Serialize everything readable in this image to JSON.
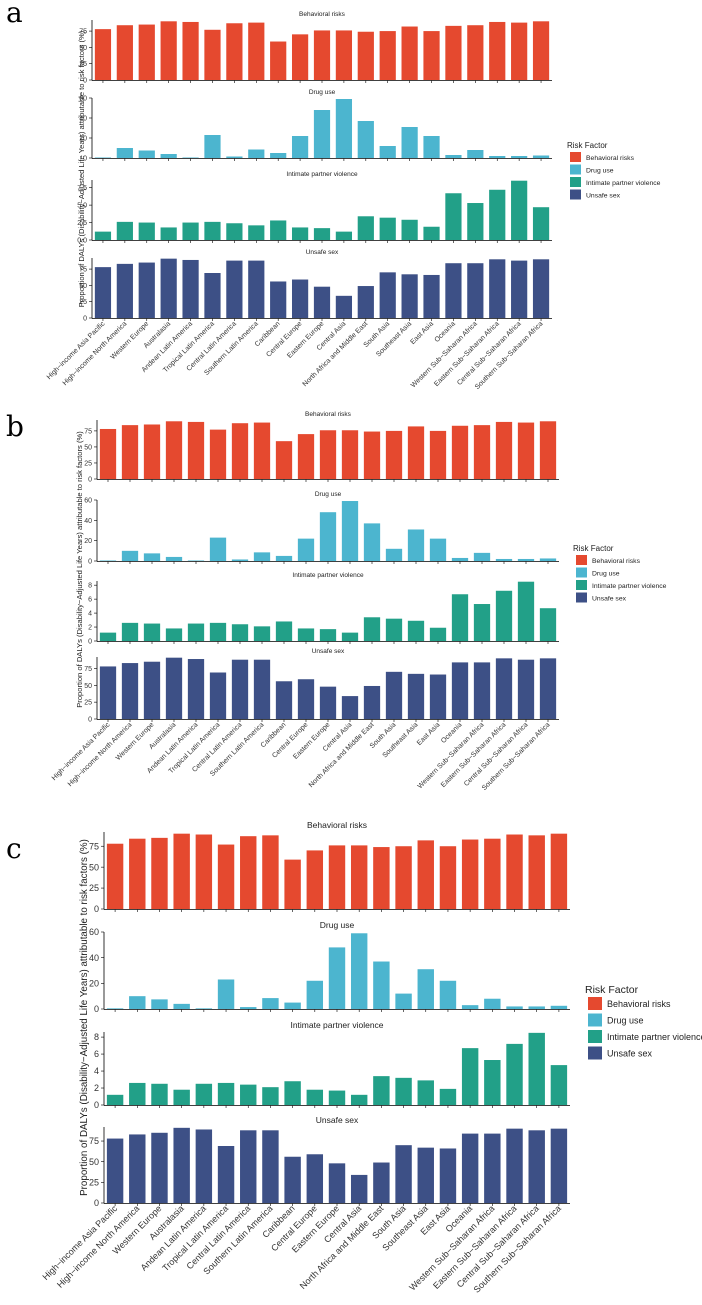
{
  "panel_letters": [
    "a",
    "b",
    "c"
  ],
  "chart_data": {
    "type": "bar",
    "title": "",
    "ylabel": "Proportion of DALYs (Disability−Adjusted Life Years) attributable to risk factors (%)",
    "xlabel": "",
    "legend_title": "Risk Factor",
    "legend_position": "right",
    "categories": [
      "High−income Asia Pacific",
      "High−income North America",
      "Western Europe",
      "Australasia",
      "Andean Latin America",
      "Tropical Latin America",
      "Central Latin America",
      "Southern Latin America",
      "Caribbean",
      "Central Europe",
      "Eastern Europe",
      "Central Asia",
      "North Africa and Middle East",
      "South Asia",
      "Southeast Asia",
      "East Asia",
      "Oceania",
      "Western Sub−Saharan Africa",
      "Eastern Sub−Saharan Africa",
      "Central Sub−Saharan Africa",
      "Southern Sub−Saharan Africa"
    ],
    "series": [
      {
        "name": "Behavioral risks",
        "color": "#E5492F",
        "ylim": [
          0,
          92
        ],
        "ticks": [
          0,
          25,
          50,
          75
        ],
        "values": [
          78,
          84,
          85,
          90,
          89,
          77,
          87,
          88,
          59,
          70,
          76,
          76,
          74,
          75,
          82,
          75,
          83,
          84,
          89,
          88,
          90
        ]
      },
      {
        "name": "Drug use",
        "color": "#4CB5CF",
        "ylim": [
          0,
          60
        ],
        "ticks": [
          0,
          20,
          40,
          60
        ],
        "values": [
          0.5,
          10,
          7.5,
          4,
          0.5,
          23,
          1.5,
          8.5,
          5,
          22,
          48,
          59,
          37,
          12,
          31,
          22,
          3,
          8,
          2,
          2,
          2.5
        ]
      },
      {
        "name": "Intimate partner violence",
        "color": "#22A088",
        "ylim": [
          0,
          8.6
        ],
        "ticks": [
          0,
          2,
          4,
          6,
          8
        ],
        "values": [
          1.2,
          2.6,
          2.5,
          1.8,
          2.5,
          2.6,
          2.4,
          2.1,
          2.8,
          1.8,
          1.7,
          1.2,
          3.4,
          3.2,
          2.9,
          1.9,
          6.7,
          5.3,
          7.2,
          8.5,
          4.7
        ]
      },
      {
        "name": "Unsafe sex",
        "color": "#3D5086",
        "ylim": [
          0,
          92
        ],
        "ticks": [
          0,
          25,
          50,
          75
        ],
        "values": [
          78,
          83,
          85,
          91,
          89,
          69,
          88,
          88,
          56,
          59,
          48,
          34,
          49,
          70,
          67,
          66,
          84,
          84,
          90,
          88,
          90
        ]
      }
    ],
    "panels": [
      {
        "label": "a",
        "subplots": [
          {
            "title": "Behavioral risks",
            "ylim": [
              0,
              92
            ],
            "ticks": [
              "0",
              "25",
              "50",
              "75"
            ],
            "tick_values": [
              0,
              25,
              50,
              75
            ]
          },
          {
            "title": "Drug use",
            "ylim": [
              0,
              60
            ],
            "ticks": [
              "0",
              "20",
              "40",
              "60"
            ],
            "tick_values": [
              0,
              20,
              40,
              60
            ]
          },
          {
            "title": "Intimate partner violence",
            "ylim": [
              0,
              8.6
            ],
            "ticks": [
              "0.0",
              "2.5",
              "5.0",
              "7.5"
            ],
            "tick_values": [
              0,
              2.5,
              5,
              7.5
            ]
          },
          {
            "title": "Unsafe sex",
            "ylim": [
              0,
              92
            ],
            "ticks": [
              "0",
              "25",
              "50",
              "75"
            ],
            "tick_values": [
              0,
              25,
              50,
              75
            ]
          }
        ]
      },
      {
        "label": "b",
        "subplots": [
          {
            "title": "Behavioral risks",
            "ylim": [
              0,
              92
            ],
            "ticks": [
              "0",
              "25",
              "50",
              "75"
            ],
            "tick_values": [
              0,
              25,
              50,
              75
            ]
          },
          {
            "title": "Drug use",
            "ylim": [
              0,
              60
            ],
            "ticks": [
              "0",
              "20",
              "40",
              "60"
            ],
            "tick_values": [
              0,
              20,
              40,
              60
            ]
          },
          {
            "title": "Intimate partner violence",
            "ylim": [
              0,
              8.6
            ],
            "ticks": [
              "0",
              "2",
              "4",
              "6",
              "8"
            ],
            "tick_values": [
              0,
              2,
              4,
              6,
              8
            ]
          },
          {
            "title": "Unsafe sex",
            "ylim": [
              0,
              92
            ],
            "ticks": [
              "0",
              "25",
              "50",
              "75"
            ],
            "tick_values": [
              0,
              25,
              50,
              75
            ]
          }
        ]
      },
      {
        "label": "c",
        "subplots": [
          {
            "title": "Behavioral risks",
            "ylim": [
              0,
              92
            ],
            "ticks": [
              "0",
              "25",
              "50",
              "75"
            ],
            "tick_values": [
              0,
              25,
              50,
              75
            ]
          },
          {
            "title": "Drug use",
            "ylim": [
              0,
              60
            ],
            "ticks": [
              "0",
              "20",
              "40",
              "60"
            ],
            "tick_values": [
              0,
              20,
              40,
              60
            ]
          },
          {
            "title": "Intimate partner violence",
            "ylim": [
              0,
              8.6
            ],
            "ticks": [
              "0",
              "2",
              "4",
              "6",
              "8"
            ],
            "tick_values": [
              0,
              2,
              4,
              6,
              8
            ]
          },
          {
            "title": "Unsafe sex",
            "ylim": [
              0,
              92
            ],
            "ticks": [
              "0",
              "25",
              "50",
              "75"
            ],
            "tick_values": [
              0,
              25,
              50,
              75
            ]
          }
        ]
      }
    ]
  }
}
